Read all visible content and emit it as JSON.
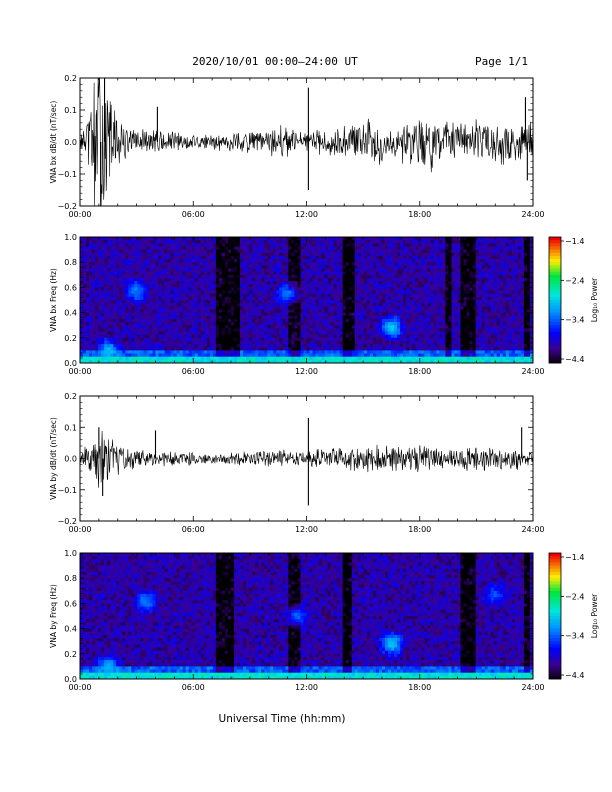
{
  "header": {
    "title": "2020/10/01  00:00–24:00 UT",
    "page": "Page 1/1"
  },
  "xlabel": "Universal Time (hh:mm)",
  "chart_data": [
    {
      "type": "line",
      "ylabel": "VNA bx dB/dt (nT/sec)",
      "xlim": [
        0,
        24
      ],
      "ylim": [
        -0.2,
        0.2
      ],
      "x_ticks": [
        "00:00",
        "06:00",
        "12:00",
        "18:00",
        "24:00"
      ],
      "y_ticks": [
        "0.2",
        "0.1",
        "0.0",
        "−0.1",
        "−0.2"
      ],
      "envelope": {
        "x_hours": [
          0,
          0.3,
          0.6,
          1.0,
          1.3,
          1.7,
          2.2,
          3.0,
          4.0,
          5.0,
          6.0,
          7.0,
          8.0,
          9.0,
          10.0,
          11.0,
          11.5,
          12.0,
          12.2,
          13.0,
          14.0,
          15.0,
          16.0,
          16.5,
          17.0,
          18.0,
          18.5,
          19.0,
          20.0,
          21.0,
          21.5,
          22.0,
          22.5,
          23.0,
          23.5,
          24.0
        ],
        "amplitude": [
          0.02,
          0.05,
          0.16,
          0.22,
          0.22,
          0.12,
          0.06,
          0.04,
          0.04,
          0.03,
          0.025,
          0.02,
          0.03,
          0.03,
          0.04,
          0.05,
          0.03,
          0.03,
          0.03,
          0.04,
          0.05,
          0.07,
          0.07,
          0.05,
          0.06,
          0.08,
          0.09,
          0.07,
          0.05,
          0.07,
          0.05,
          0.06,
          0.08,
          0.06,
          0.08,
          0.05
        ]
      },
      "spikes": [
        {
          "x_hours": 1.3,
          "y": 0.2
        },
        {
          "x_hours": 1.1,
          "y": -0.2
        },
        {
          "x_hours": 4.1,
          "y": 0.11
        },
        {
          "x_hours": 12.1,
          "y": 0.17
        },
        {
          "x_hours": 12.1,
          "y": -0.15
        },
        {
          "x_hours": 23.6,
          "y": 0.14
        },
        {
          "x_hours": 23.7,
          "y": -0.12
        }
      ]
    },
    {
      "type": "heatmap",
      "ylabel": "VNA bx Freq (Hz)",
      "xlim": [
        0,
        24
      ],
      "ylim": [
        0,
        1.0
      ],
      "x_ticks": [
        "00:00",
        "06:00",
        "12:00",
        "18:00",
        "24:00"
      ],
      "y_ticks": [
        "1.0",
        "0.8",
        "0.6",
        "0.4",
        "0.2",
        "0.0"
      ],
      "colorbar": {
        "label": "Log₁₀ Power",
        "range": [
          -4.4,
          -1.4
        ],
        "ticks": [
          "−1.4",
          "−2.4",
          "−3.4",
          "−4.4"
        ]
      },
      "dark_bands_hours": [
        [
          7.2,
          8.4
        ],
        [
          11.0,
          11.6
        ],
        [
          14.0,
          14.5
        ],
        [
          19.3,
          19.7
        ],
        [
          20.2,
          20.9
        ],
        [
          23.5,
          23.9
        ]
      ],
      "features": [
        {
          "x_hours": 3.0,
          "freq_hz": 0.57,
          "level": -3.2
        },
        {
          "x_hours": 11.0,
          "freq_hz": 0.55,
          "level": -3.2
        },
        {
          "x_hours": 16.5,
          "freq_hz": 0.28,
          "level": -2.9
        },
        {
          "x_hours": 1.5,
          "freq_hz": 0.1,
          "level": -3.0
        }
      ]
    },
    {
      "type": "line",
      "ylabel": "VNA by dB/dt (nT/sec)",
      "xlim": [
        0,
        24
      ],
      "ylim": [
        -0.2,
        0.2
      ],
      "x_ticks": [
        "00:00",
        "06:00",
        "12:00",
        "18:00",
        "24:00"
      ],
      "y_ticks": [
        "0.2",
        "0.1",
        "0.0",
        "−0.1",
        "−0.2"
      ],
      "envelope": {
        "x_hours": [
          0,
          0.5,
          1.0,
          1.3,
          1.7,
          2.2,
          3.0,
          4.0,
          5.0,
          6.0,
          7.0,
          8.0,
          9.0,
          10.0,
          11.0,
          12.0,
          13.0,
          14.0,
          15.0,
          16.0,
          17.0,
          18.0,
          19.0,
          20.0,
          21.0,
          22.0,
          23.0,
          24.0
        ],
        "amplitude": [
          0.02,
          0.05,
          0.1,
          0.09,
          0.06,
          0.04,
          0.03,
          0.025,
          0.02,
          0.02,
          0.015,
          0.02,
          0.02,
          0.025,
          0.03,
          0.025,
          0.03,
          0.035,
          0.04,
          0.04,
          0.035,
          0.04,
          0.035,
          0.03,
          0.04,
          0.03,
          0.035,
          0.02
        ]
      },
      "spikes": [
        {
          "x_hours": 1.0,
          "y": 0.1
        },
        {
          "x_hours": 1.2,
          "y": -0.12
        },
        {
          "x_hours": 4.0,
          "y": 0.09
        },
        {
          "x_hours": 12.1,
          "y": 0.13
        },
        {
          "x_hours": 12.1,
          "y": -0.15
        },
        {
          "x_hours": 23.4,
          "y": 0.1
        }
      ]
    },
    {
      "type": "heatmap",
      "ylabel": "VNA by Freq (Hz)",
      "xlim": [
        0,
        24
      ],
      "ylim": [
        0,
        1.0
      ],
      "x_ticks": [
        "00:00",
        "06:00",
        "12:00",
        "18:00",
        "24:00"
      ],
      "y_ticks": [
        "1.0",
        "0.8",
        "0.6",
        "0.4",
        "0.2",
        "0.0"
      ],
      "colorbar": {
        "label": "Log₁₀ Power",
        "range": [
          -4.4,
          -1.4
        ],
        "ticks": [
          "−1.4",
          "−2.4",
          "−3.4",
          "−4.4"
        ]
      },
      "dark_bands_hours": [
        [
          7.2,
          8.2
        ],
        [
          11.0,
          11.6
        ],
        [
          14.0,
          14.4
        ],
        [
          20.2,
          20.9
        ],
        [
          23.5,
          23.9
        ]
      ],
      "features": [
        {
          "x_hours": 3.5,
          "freq_hz": 0.62,
          "level": -3.2
        },
        {
          "x_hours": 11.5,
          "freq_hz": 0.5,
          "level": -3.3
        },
        {
          "x_hours": 16.5,
          "freq_hz": 0.28,
          "level": -2.9
        },
        {
          "x_hours": 22.0,
          "freq_hz": 0.67,
          "level": -3.4
        },
        {
          "x_hours": 1.5,
          "freq_hz": 0.1,
          "level": -3.0
        }
      ]
    }
  ]
}
